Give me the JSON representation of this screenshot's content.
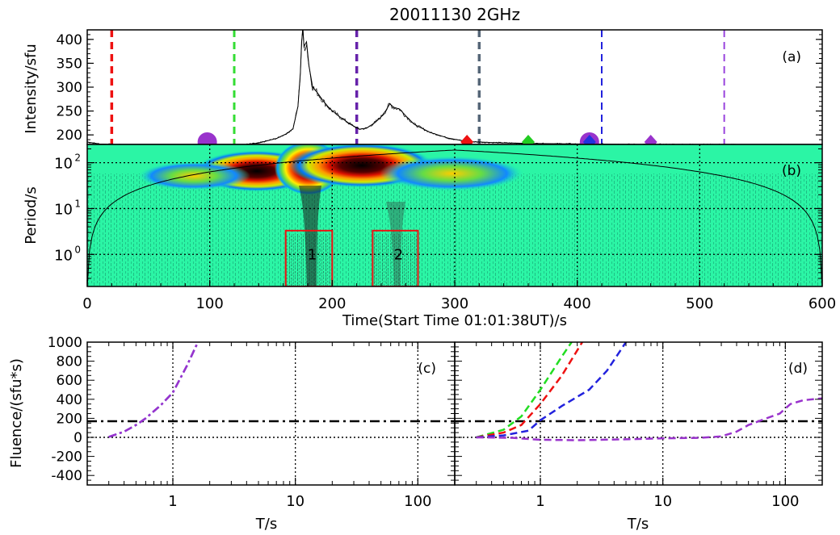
{
  "title": "20011130 2GHz",
  "chart_data": [
    {
      "panel": "(a)",
      "type": "line",
      "ylabel": "Intensity/sfu",
      "xlim": [
        0,
        600
      ],
      "ylim": [
        180,
        420
      ],
      "yticks": [
        200,
        250,
        300,
        350,
        400
      ],
      "profile": [
        [
          0,
          185
        ],
        [
          10,
          181
        ],
        [
          30,
          179
        ],
        [
          60,
          177
        ],
        [
          90,
          176
        ],
        [
          120,
          177
        ],
        [
          140,
          183
        ],
        [
          155,
          193
        ],
        [
          163,
          203
        ],
        [
          168,
          213
        ],
        [
          172,
          260
        ],
        [
          174,
          330
        ],
        [
          175,
          395
        ],
        [
          176,
          420
        ],
        [
          177,
          385
        ],
        [
          179,
          395
        ],
        [
          181,
          345
        ],
        [
          184,
          300
        ],
        [
          188,
          288
        ],
        [
          193,
          270
        ],
        [
          198,
          255
        ],
        [
          205,
          240
        ],
        [
          215,
          222
        ],
        [
          222,
          212
        ],
        [
          228,
          214
        ],
        [
          235,
          226
        ],
        [
          240,
          238
        ],
        [
          244,
          252
        ],
        [
          247,
          265
        ],
        [
          250,
          258
        ],
        [
          255,
          254
        ],
        [
          260,
          240
        ],
        [
          267,
          222
        ],
        [
          280,
          205
        ],
        [
          295,
          193
        ],
        [
          310,
          186
        ],
        [
          330,
          184
        ],
        [
          360,
          182
        ],
        [
          400,
          181
        ],
        [
          450,
          180
        ],
        [
          500,
          180
        ],
        [
          550,
          179
        ],
        [
          600,
          179
        ]
      ],
      "vlines": [
        {
          "t": 20,
          "color": "#ee1111",
          "width": 3.5
        },
        {
          "t": 120,
          "color": "#33dd33",
          "width": 3
        },
        {
          "t": 220,
          "color": "#6622aa",
          "width": 3.5
        },
        {
          "t": 320,
          "color": "#556677",
          "width": 3.5
        },
        {
          "t": 420,
          "color": "#2222dd",
          "width": 2
        },
        {
          "t": 520,
          "color": "#9944dd",
          "width": 2
        }
      ],
      "markers": [
        {
          "t": 98,
          "shape": "circle",
          "color": "#9933cc"
        },
        {
          "t": 410,
          "shape": "circle",
          "color": "#9933cc"
        },
        {
          "t": 310,
          "shape": "diamond",
          "color": "#ee1111"
        },
        {
          "t": 360,
          "shape": "diamond",
          "color": "#22cc22"
        },
        {
          "t": 410,
          "shape": "diamond",
          "color": "#2233dd"
        },
        {
          "t": 460,
          "shape": "diamond",
          "color": "#9933cc"
        }
      ]
    },
    {
      "panel": "(b)",
      "type": "heatmap",
      "ylabel": "Period/s",
      "xlabel": "Time(Start Time 01:01:38UT)/s",
      "xlim": [
        0,
        600
      ],
      "xticks": [
        0,
        100,
        200,
        300,
        400,
        500,
        600
      ],
      "ylim": [
        0.2,
        250
      ],
      "yscale": "log",
      "yticks": [
        {
          "base": "10",
          "exp": "2",
          "v": 100
        },
        {
          "base": "10",
          "exp": "1",
          "v": 10
        },
        {
          "base": "10",
          "exp": "0",
          "v": 1
        }
      ],
      "boxes": [
        {
          "label": "1",
          "t0": 162,
          "t1": 200,
          "p0": 0.2,
          "p1": 3.3
        },
        {
          "label": "2",
          "t0": 233,
          "t1": 270,
          "p0": 0.2,
          "p1": 3.3
        }
      ]
    },
    {
      "panel": "(c)",
      "type": "line",
      "ylabel": "Fluence/(sfu*s)",
      "xlabel": "T/s",
      "xscale": "log",
      "xlim": [
        0.2,
        200
      ],
      "ylim": [
        -500,
        1000
      ],
      "yticks": [
        1000,
        800,
        600,
        400,
        200,
        0,
        -200,
        -400
      ],
      "xticks": [
        {
          "v": 1,
          "label": "1"
        },
        {
          "v": 10,
          "label": "10"
        },
        {
          "v": 100,
          "label": "100"
        }
      ],
      "threshold": 170,
      "series": [
        {
          "color": "#2222dd",
          "style": "dashdot",
          "points": [
            [
              0.3,
              5
            ],
            [
              0.4,
              60
            ],
            [
              0.5,
              130
            ],
            [
              0.6,
              200
            ],
            [
              0.8,
              340
            ],
            [
              1,
              470
            ],
            [
              1.3,
              750
            ],
            [
              1.6,
              1000
            ]
          ]
        },
        {
          "color": "#9933cc",
          "style": "dashdot",
          "points": [
            [
              0.3,
              5
            ],
            [
              0.4,
              60
            ],
            [
              0.5,
              130
            ],
            [
              0.6,
              200
            ],
            [
              0.8,
              340
            ],
            [
              1,
              470
            ],
            [
              1.3,
              750
            ],
            [
              1.6,
              1000
            ]
          ]
        }
      ]
    },
    {
      "panel": "(d)",
      "type": "line",
      "xlabel": "T/s",
      "xscale": "log",
      "xlim": [
        0.2,
        200
      ],
      "ylim": [
        -500,
        1000
      ],
      "xticks": [
        {
          "v": 1,
          "label": "1"
        },
        {
          "v": 10,
          "label": "10"
        },
        {
          "v": 100,
          "label": "100"
        }
      ],
      "threshold": 170,
      "series": [
        {
          "color": "#22dd22",
          "style": "dashed",
          "points": [
            [
              0.3,
              0
            ],
            [
              0.5,
              80
            ],
            [
              0.7,
              220
            ],
            [
              1,
              500
            ],
            [
              1.5,
              850
            ],
            [
              1.8,
              1000
            ]
          ]
        },
        {
          "color": "#ee1111",
          "style": "dashed",
          "points": [
            [
              0.3,
              0
            ],
            [
              0.5,
              50
            ],
            [
              0.7,
              130
            ],
            [
              1,
              350
            ],
            [
              1.5,
              650
            ],
            [
              2.2,
              1000
            ]
          ]
        },
        {
          "color": "#2222dd",
          "style": "dashed",
          "points": [
            [
              0.3,
              0
            ],
            [
              0.5,
              20
            ],
            [
              0.8,
              70
            ],
            [
              1,
              180
            ],
            [
              1.5,
              330
            ],
            [
              2.5,
              500
            ],
            [
              3.5,
              700
            ],
            [
              5,
              1000
            ]
          ]
        },
        {
          "color": "#9933cc",
          "style": "dashed",
          "points": [
            [
              0.3,
              0
            ],
            [
              0.6,
              -5
            ],
            [
              1,
              -25
            ],
            [
              2,
              -30
            ],
            [
              5,
              -20
            ],
            [
              10,
              -10
            ],
            [
              20,
              -5
            ],
            [
              30,
              10
            ],
            [
              40,
              60
            ],
            [
              50,
              130
            ],
            [
              70,
              200
            ],
            [
              90,
              250
            ],
            [
              110,
              350
            ],
            [
              140,
              390
            ],
            [
              200,
              410
            ]
          ]
        }
      ]
    }
  ]
}
